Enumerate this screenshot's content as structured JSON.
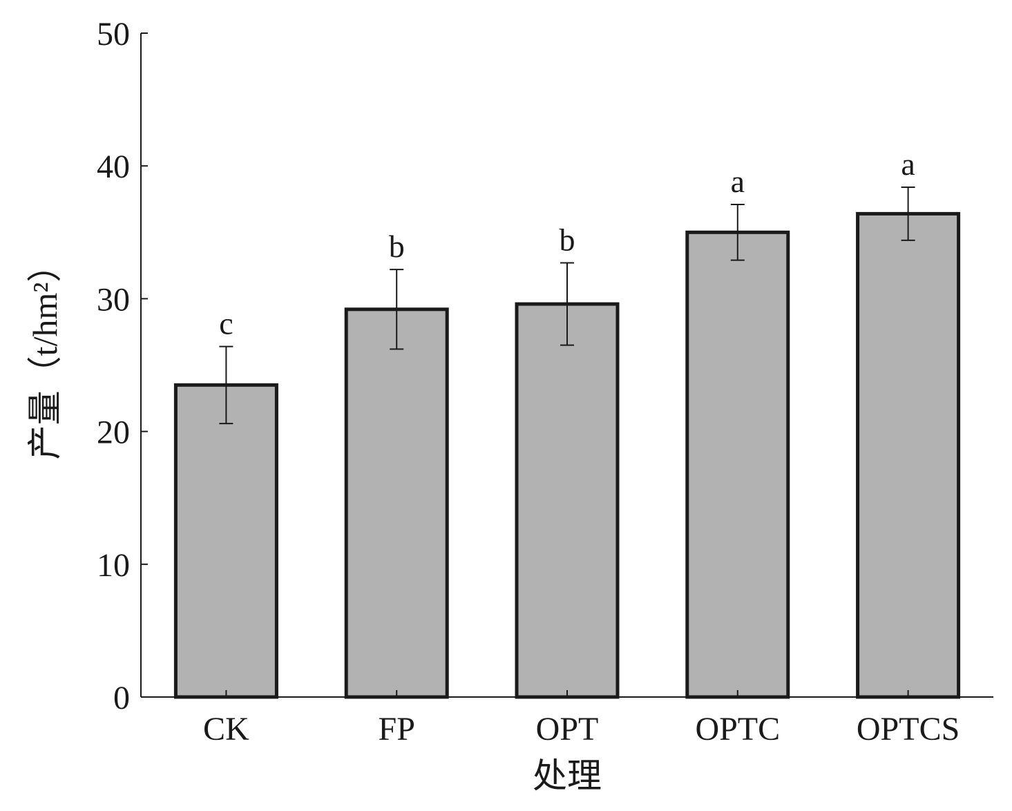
{
  "chart_data": {
    "type": "bar",
    "categories": [
      "CK",
      "FP",
      "OPT",
      "OPTC",
      "OPTCS"
    ],
    "values": [
      23.5,
      29.2,
      29.6,
      35.0,
      36.4
    ],
    "errors": [
      2.9,
      3.0,
      3.1,
      2.1,
      2.0
    ],
    "significance": [
      "c",
      "b",
      "b",
      "a",
      "a"
    ],
    "xlabel": "处理",
    "ylabel": "产量（t/hm²）",
    "ylim": [
      0,
      50
    ],
    "yticks": [
      0,
      10,
      20,
      30,
      40,
      50
    ],
    "bar_color": "#b2b2b2",
    "outline_color": "#1a1a1a",
    "grid": false
  }
}
